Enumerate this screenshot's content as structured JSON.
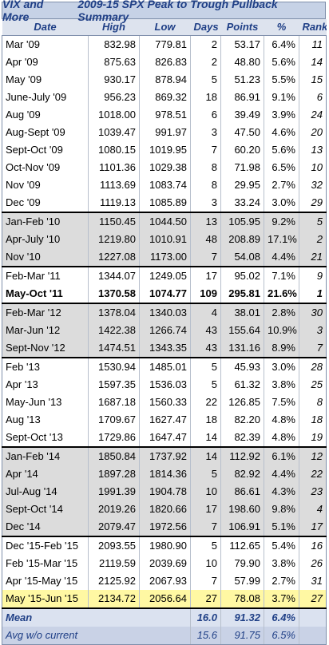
{
  "title": {
    "brand": "VIX and More",
    "text": "2009-15 SPX Peak to Trough Pullback Summary"
  },
  "columns": [
    "Date",
    "High",
    "Low",
    "Days",
    "Points",
    "%",
    "Rank"
  ],
  "groups": [
    {
      "shade": 0,
      "rows": [
        [
          "Mar '09",
          "832.98",
          "779.81",
          "2",
          "53.17",
          "6.4%",
          "11"
        ],
        [
          "Apr '09",
          "875.63",
          "826.83",
          "2",
          "48.80",
          "5.6%",
          "14"
        ],
        [
          "May '09",
          "930.17",
          "878.94",
          "5",
          "51.23",
          "5.5%",
          "15"
        ],
        [
          "June-July '09",
          "956.23",
          "869.32",
          "18",
          "86.91",
          "9.1%",
          "6"
        ],
        [
          "Aug '09",
          "1018.00",
          "978.51",
          "6",
          "39.49",
          "3.9%",
          "24"
        ],
        [
          "Aug-Sept '09",
          "1039.47",
          "991.97",
          "3",
          "47.50",
          "4.6%",
          "20"
        ],
        [
          "Sept-Oct '09",
          "1080.15",
          "1019.95",
          "7",
          "60.20",
          "5.6%",
          "13"
        ],
        [
          "Oct-Nov '09",
          "1101.36",
          "1029.38",
          "8",
          "71.98",
          "6.5%",
          "10"
        ],
        [
          "Nov '09",
          "1113.69",
          "1083.74",
          "8",
          "29.95",
          "2.7%",
          "32"
        ],
        [
          "Dec '09",
          "1119.13",
          "1085.89",
          "3",
          "33.24",
          "3.0%",
          "29"
        ]
      ]
    },
    {
      "shade": 1,
      "rows": [
        [
          "Jan-Feb '10",
          "1150.45",
          "1044.50",
          "13",
          "105.95",
          "9.2%",
          "5"
        ],
        [
          "Apr-July '10",
          "1219.80",
          "1010.91",
          "48",
          "208.89",
          "17.1%",
          "2"
        ],
        [
          "Nov '10",
          "1227.08",
          "1173.00",
          "7",
          "54.08",
          "4.4%",
          "21"
        ]
      ]
    },
    {
      "shade": 0,
      "rows": [
        [
          "Feb-Mar '11",
          "1344.07",
          "1249.05",
          "17",
          "95.02",
          "7.1%",
          "9"
        ],
        [
          "May-Oct '11",
          "1370.58",
          "1074.77",
          "109",
          "295.81",
          "21.6%",
          "1"
        ]
      ],
      "bold_row": 1
    },
    {
      "shade": 1,
      "rows": [
        [
          "Feb-Mar '12",
          "1378.04",
          "1340.03",
          "4",
          "38.01",
          "2.8%",
          "30"
        ],
        [
          "Mar-Jun '12",
          "1422.38",
          "1266.74",
          "43",
          "155.64",
          "10.9%",
          "3"
        ],
        [
          "Sept-Nov '12",
          "1474.51",
          "1343.35",
          "43",
          "131.16",
          "8.9%",
          "7"
        ]
      ]
    },
    {
      "shade": 0,
      "rows": [
        [
          "Feb '13",
          "1530.94",
          "1485.01",
          "5",
          "45.93",
          "3.0%",
          "28"
        ],
        [
          "Apr '13",
          "1597.35",
          "1536.03",
          "5",
          "61.32",
          "3.8%",
          "25"
        ],
        [
          "May-Jun '13",
          "1687.18",
          "1560.33",
          "22",
          "126.85",
          "7.5%",
          "8"
        ],
        [
          "Aug '13",
          "1709.67",
          "1627.47",
          "18",
          "82.20",
          "4.8%",
          "18"
        ],
        [
          "Sept-Oct '13",
          "1729.86",
          "1647.47",
          "14",
          "82.39",
          "4.8%",
          "19"
        ]
      ]
    },
    {
      "shade": 1,
      "rows": [
        [
          "Jan-Feb '14",
          "1850.84",
          "1737.92",
          "14",
          "112.92",
          "6.1%",
          "12"
        ],
        [
          "Apr '14",
          "1897.28",
          "1814.36",
          "5",
          "82.92",
          "4.4%",
          "22"
        ],
        [
          "Jul-Aug '14",
          "1991.39",
          "1904.78",
          "10",
          "86.61",
          "4.3%",
          "23"
        ],
        [
          "Sept-Oct '14",
          "2019.26",
          "1820.66",
          "17",
          "198.60",
          "9.8%",
          "4"
        ],
        [
          "Dec '14",
          "2079.47",
          "1972.56",
          "7",
          "106.91",
          "5.1%",
          "17"
        ]
      ]
    },
    {
      "shade": 0,
      "rows": [
        [
          "Dec '15-Feb '15",
          "2093.55",
          "1980.90",
          "5",
          "112.65",
          "5.4%",
          "16"
        ],
        [
          "Feb '15-Mar '15",
          "2119.59",
          "2039.69",
          "10",
          "79.90",
          "3.8%",
          "26"
        ],
        [
          "Apr '15-May '15",
          "2125.92",
          "2067.93",
          "7",
          "57.99",
          "2.7%",
          "31"
        ],
        [
          "May '15-Jun '15",
          "2134.72",
          "2056.64",
          "27",
          "78.08",
          "3.7%",
          "27"
        ]
      ],
      "highlight_row": 3
    }
  ],
  "summary": {
    "mean": {
      "label": "Mean",
      "days": "16.0",
      "points": "91.32",
      "pct": "6.4%"
    },
    "avg": {
      "label": "Avg w/o current",
      "days": "15.6",
      "points": "91.75",
      "pct": "6.5%"
    }
  },
  "colors": {
    "title_text": "#1f3f86",
    "shade": "#dcdcdc",
    "highlight": "#fff8a3",
    "summary_bg": "#dbe2f0"
  }
}
